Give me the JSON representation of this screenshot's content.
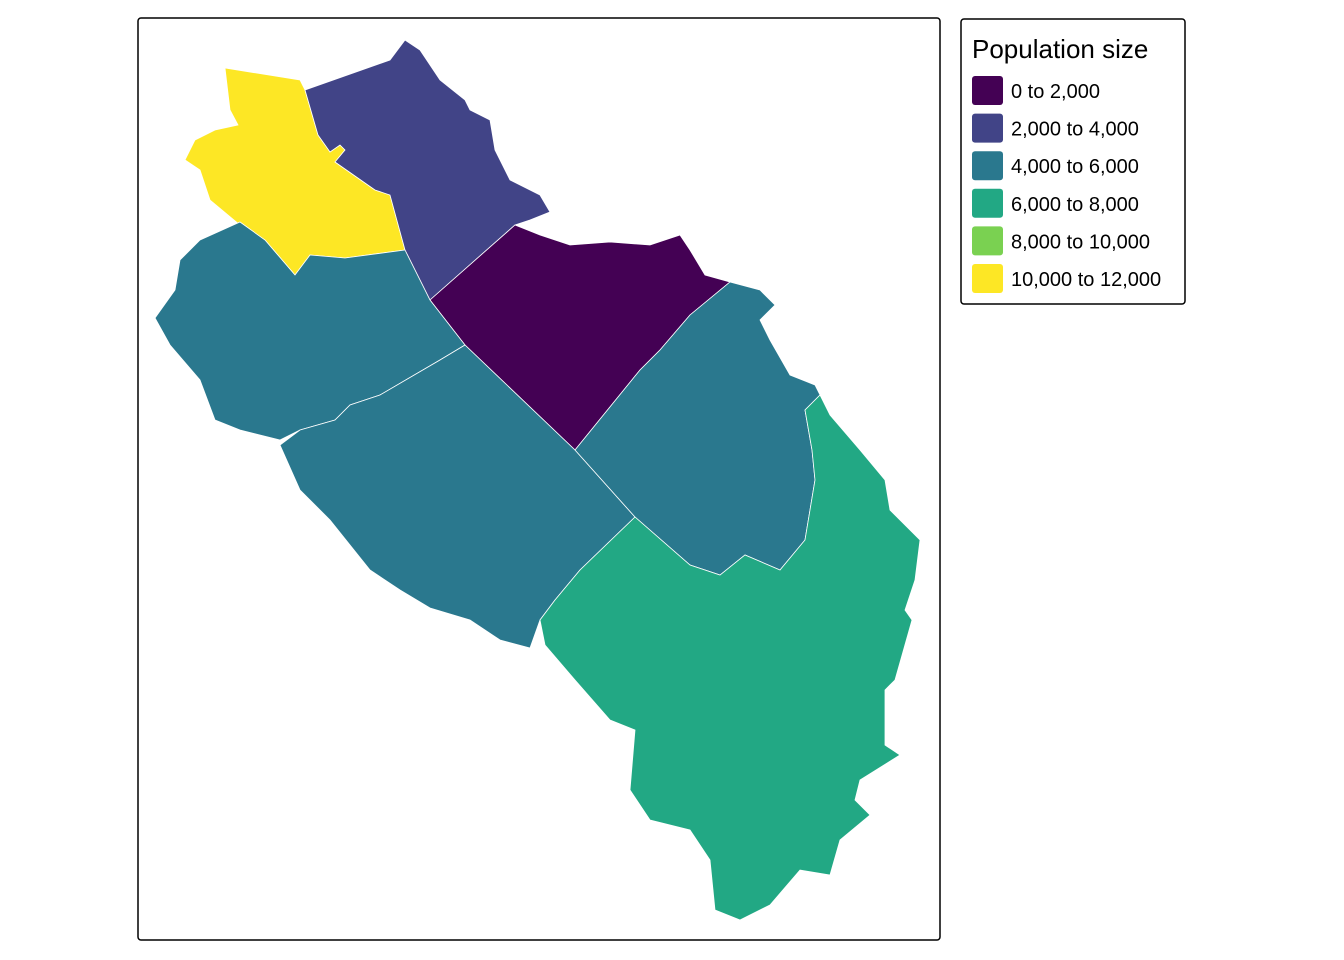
{
  "legend": {
    "title": "Population size",
    "items": [
      {
        "label": "0 to 2,000",
        "color": "#440154"
      },
      {
        "label": "2,000 to 4,000",
        "color": "#414487"
      },
      {
        "label": "4,000 to 6,000",
        "color": "#2A788E"
      },
      {
        "label": "6,000 to 8,000",
        "color": "#22A884"
      },
      {
        "label": "8,000 to 10,000",
        "color": "#7AD151"
      },
      {
        "label": "10,000 to 12,000",
        "color": "#FDE725"
      }
    ]
  }
}
